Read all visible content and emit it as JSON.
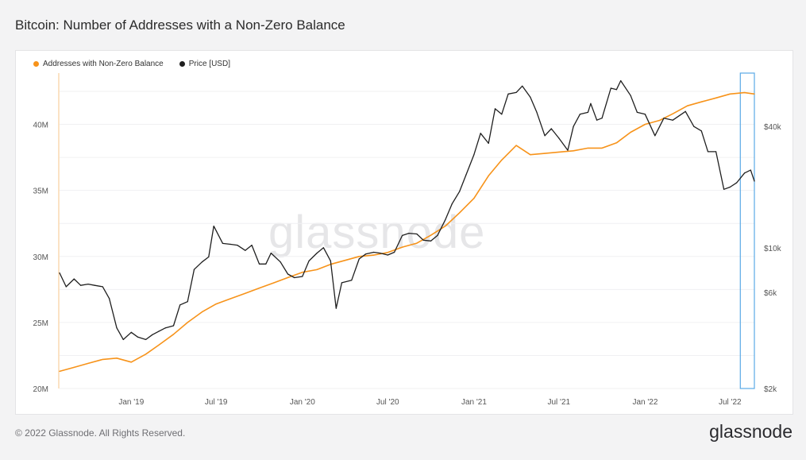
{
  "title": "Bitcoin: Number of Addresses with a Non-Zero Balance",
  "footer": {
    "copyright": "© 2022 Glassnode. All Rights Reserved.",
    "logo": "glassnode"
  },
  "watermark": "glassnode",
  "colors": {
    "addresses": "#f7931a",
    "price": "#1f1f1f",
    "highlight": "#5aa9e6"
  },
  "chart_data": {
    "type": "line",
    "title": "Bitcoin: Number of Addresses with a Non-Zero Balance",
    "legend_position": "top-left",
    "grid": true,
    "x_ticks": [
      "Jan '19",
      "Jul '19",
      "Jan '20",
      "Jul '20",
      "Jan '21",
      "Jul '21",
      "Jan '22",
      "Jul '22"
    ],
    "x_tick_dates": [
      "2019-01-01",
      "2019-07-01",
      "2020-01-01",
      "2020-07-01",
      "2021-01-01",
      "2021-07-01",
      "2022-01-01",
      "2022-07-01"
    ],
    "x_range": [
      "2018-08-01",
      "2022-08-22"
    ],
    "left_axis": {
      "scale": "linear",
      "ylim": [
        20,
        44
      ],
      "unit": "M",
      "ticks": [
        "20M",
        "25M",
        "30M",
        "35M",
        "40M"
      ],
      "tick_values": [
        20,
        25,
        30,
        35,
        40
      ]
    },
    "right_axis": {
      "scale": "log",
      "ylim": [
        2000,
        75000
      ],
      "ticks": [
        "$2k",
        "$6k",
        "$10k",
        "$40k"
      ],
      "tick_values": [
        2000,
        6000,
        10000,
        40000
      ]
    },
    "highlight_range": [
      "2022-07-23",
      "2022-08-22"
    ],
    "series": [
      {
        "name": "Addresses with Non-Zero Balance",
        "axis": "left",
        "x": [
          "2018-08-01",
          "2018-09-01",
          "2018-10-01",
          "2018-11-01",
          "2018-12-01",
          "2019-01-01",
          "2019-02-01",
          "2019-03-01",
          "2019-04-01",
          "2019-05-01",
          "2019-06-01",
          "2019-07-01",
          "2019-08-01",
          "2019-09-01",
          "2019-10-01",
          "2019-11-01",
          "2019-12-01",
          "2020-01-01",
          "2020-02-01",
          "2020-03-01",
          "2020-04-01",
          "2020-05-01",
          "2020-06-01",
          "2020-07-01",
          "2020-08-01",
          "2020-09-01",
          "2020-10-01",
          "2020-11-01",
          "2020-12-01",
          "2021-01-01",
          "2021-02-01",
          "2021-03-01",
          "2021-04-01",
          "2021-05-01",
          "2021-06-01",
          "2021-07-01",
          "2021-08-01",
          "2021-09-01",
          "2021-10-01",
          "2021-11-01",
          "2021-12-01",
          "2022-01-01",
          "2022-02-01",
          "2022-03-01",
          "2022-04-01",
          "2022-05-01",
          "2022-06-01",
          "2022-07-01",
          "2022-08-01",
          "2022-08-22"
        ],
        "values": [
          21.3,
          21.6,
          21.9,
          22.2,
          22.3,
          22.0,
          22.6,
          23.3,
          24.1,
          25.0,
          25.8,
          26.4,
          26.8,
          27.2,
          27.6,
          28.0,
          28.4,
          28.8,
          29.0,
          29.4,
          29.7,
          30.0,
          30.1,
          30.3,
          30.7,
          31.0,
          31.6,
          32.3,
          33.3,
          34.4,
          36.1,
          37.3,
          38.4,
          37.7,
          37.8,
          37.9,
          38.0,
          38.2,
          38.2,
          38.6,
          39.4,
          40.0,
          40.3,
          40.8,
          41.4,
          41.7,
          42.0,
          42.3,
          42.4,
          42.3
        ]
      },
      {
        "name": "Price [USD]",
        "axis": "right",
        "x": [
          "2018-08-01",
          "2018-08-15",
          "2018-09-01",
          "2018-09-15",
          "2018-10-01",
          "2018-10-15",
          "2018-11-01",
          "2018-11-15",
          "2018-12-01",
          "2018-12-15",
          "2019-01-01",
          "2019-01-15",
          "2019-02-01",
          "2019-02-15",
          "2019-03-01",
          "2019-03-15",
          "2019-04-01",
          "2019-04-15",
          "2019-05-01",
          "2019-05-15",
          "2019-06-01",
          "2019-06-15",
          "2019-06-26",
          "2019-07-15",
          "2019-08-01",
          "2019-08-15",
          "2019-09-01",
          "2019-09-15",
          "2019-10-01",
          "2019-10-15",
          "2019-10-26",
          "2019-11-15",
          "2019-12-01",
          "2019-12-15",
          "2020-01-01",
          "2020-01-15",
          "2020-02-01",
          "2020-02-15",
          "2020-03-01",
          "2020-03-13",
          "2020-03-25",
          "2020-04-15",
          "2020-05-01",
          "2020-05-15",
          "2020-06-01",
          "2020-06-15",
          "2020-07-01",
          "2020-07-15",
          "2020-08-01",
          "2020-08-15",
          "2020-09-01",
          "2020-09-15",
          "2020-10-01",
          "2020-10-15",
          "2020-11-01",
          "2020-11-15",
          "2020-12-01",
          "2020-12-15",
          "2021-01-01",
          "2021-01-15",
          "2021-02-01",
          "2021-02-15",
          "2021-03-01",
          "2021-03-15",
          "2021-04-01",
          "2021-04-14",
          "2021-05-01",
          "2021-05-15",
          "2021-06-01",
          "2021-06-15",
          "2021-07-01",
          "2021-07-20",
          "2021-08-01",
          "2021-08-15",
          "2021-09-01",
          "2021-09-07",
          "2021-09-20",
          "2021-10-01",
          "2021-10-20",
          "2021-11-01",
          "2021-11-10",
          "2021-12-01",
          "2021-12-15",
          "2022-01-01",
          "2022-01-22",
          "2022-02-10",
          "2022-03-01",
          "2022-03-28",
          "2022-04-15",
          "2022-05-01",
          "2022-05-15",
          "2022-06-01",
          "2022-06-18",
          "2022-07-01",
          "2022-07-15",
          "2022-08-01",
          "2022-08-14",
          "2022-08-22"
        ],
        "values": [
          7500,
          6400,
          7000,
          6500,
          6600,
          6500,
          6400,
          5600,
          4000,
          3500,
          3800,
          3600,
          3500,
          3700,
          3850,
          4000,
          4100,
          5200,
          5400,
          7800,
          8500,
          9000,
          12800,
          10500,
          10400,
          10300,
          9700,
          10300,
          8300,
          8300,
          9400,
          8500,
          7400,
          7100,
          7200,
          8600,
          9400,
          10000,
          8600,
          5000,
          6700,
          6900,
          8800,
          9300,
          9500,
          9400,
          9200,
          9500,
          11500,
          11800,
          11700,
          10900,
          10800,
          11500,
          13800,
          16500,
          19000,
          23000,
          29000,
          37000,
          33000,
          49000,
          46000,
          58000,
          59000,
          63500,
          56000,
          47000,
          36000,
          39000,
          35000,
          30500,
          40000,
          46000,
          47000,
          52000,
          43000,
          44000,
          62000,
          61000,
          67500,
          57000,
          47000,
          46000,
          36000,
          44000,
          43000,
          47500,
          40000,
          38000,
          30000,
          30000,
          19500,
          20000,
          21000,
          23500,
          24300,
          21400
        ]
      }
    ]
  }
}
